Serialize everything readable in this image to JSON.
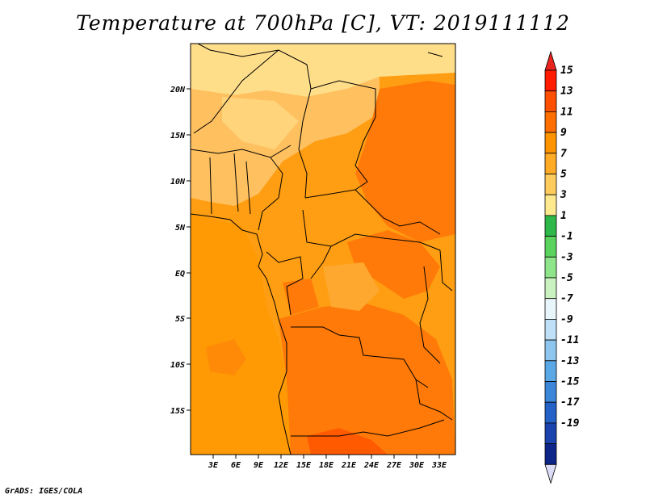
{
  "title": "Temperature at 700hPa [C], VT: 2019111112",
  "credit": "GrADS: IGES/COLA",
  "map": {
    "lat_labels": [
      "20N",
      "15N",
      "10N",
      "5N",
      "EQ",
      "5S",
      "10S",
      "15S"
    ],
    "lon_labels": [
      "3E",
      "6E",
      "9E",
      "12E",
      "15E",
      "18E",
      "21E",
      "24E",
      "27E",
      "30E",
      "33E"
    ]
  },
  "colorbar": {
    "labels": [
      "15",
      "13",
      "11",
      "9",
      "7",
      "5",
      "3",
      "1",
      "-1",
      "-3",
      "-5",
      "-7",
      "-9",
      "-11",
      "-13",
      "-15",
      "-17",
      "-19"
    ],
    "colors": [
      "#ff1c00",
      "#ff4f00",
      "#ff6f00",
      "#ff9300",
      "#ffab26",
      "#ffcb5c",
      "#ffe98f",
      "#2eb84a",
      "#5ad35e",
      "#8fe58a",
      "#c9f2c0",
      "#e8f6fb",
      "#bfe0f7",
      "#8fc6f0",
      "#5aa8e6",
      "#3b86d9",
      "#2462c8",
      "#1a43ad",
      "#0d2488"
    ],
    "overflow_top_color": "#e8241c",
    "overflow_bottom_color": "#dcdcf6"
  }
}
